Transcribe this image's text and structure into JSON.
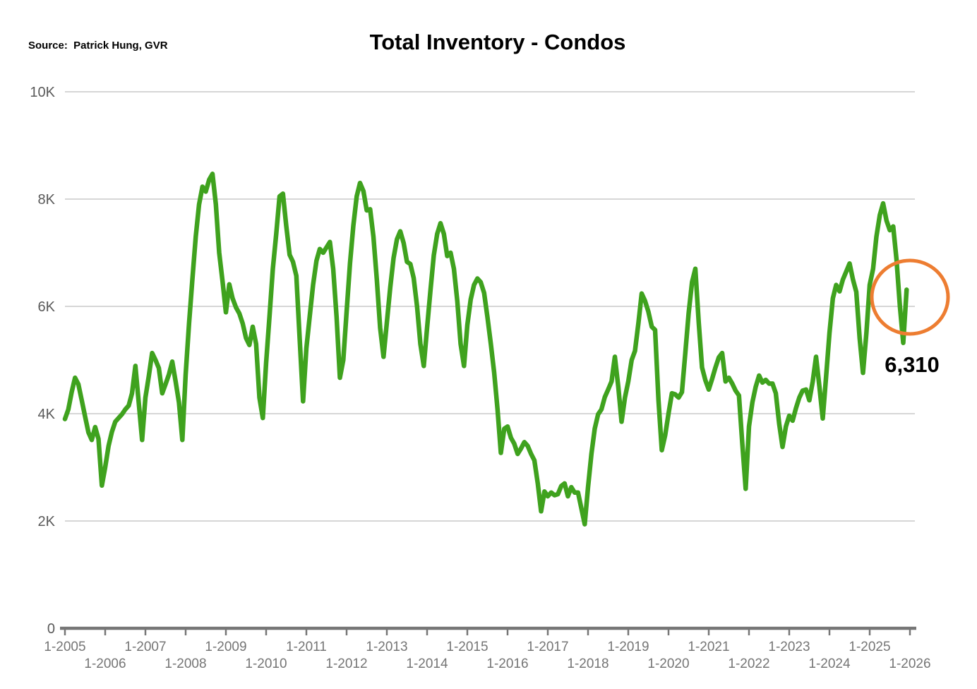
{
  "header": {
    "source": "Source:  Patrick Hung, GVR",
    "title": "Total Inventory - Condos"
  },
  "annotation": {
    "last_value_label": "6,310"
  },
  "colors": {
    "line_green": "#3FA21E",
    "circle_orange": "#ED7D31",
    "gridline_gray": "#C9C9C9",
    "axis_gray": "#767676",
    "x_label_gray": "#757575",
    "y_label_gray": "#595959"
  },
  "chart_data": {
    "type": "line",
    "title": "Total Inventory - Condos",
    "frequency": "monthly",
    "x_start_month": "1-2005",
    "x_end_month": "12-2025",
    "ylim": [
      0,
      10000
    ],
    "grid": true,
    "legend_position": "none",
    "y_tick_values": [
      0,
      2000,
      4000,
      6000,
      8000,
      10000
    ],
    "y_tick_labels": [
      "0",
      "2K",
      "4K",
      "6K",
      "8K",
      "10K"
    ],
    "x_tick_labels": [
      "1-2005",
      "1-2006",
      "1-2007",
      "1-2008",
      "1-2009",
      "1-2010",
      "1-2011",
      "1-2012",
      "1-2013",
      "1-2014",
      "1-2015",
      "1-2016",
      "1-2017",
      "1-2018",
      "1-2019",
      "1-2020",
      "1-2021",
      "1-2022",
      "1-2023",
      "1-2024",
      "1-2025",
      "1-2026"
    ],
    "annotated_last_value": 6310,
    "series": [
      {
        "name": "Total Inventory - Condos",
        "values": [
          3900,
          4080,
          4400,
          4670,
          4550,
          4250,
          3950,
          3650,
          3510,
          3750,
          3530,
          2660,
          3000,
          3400,
          3660,
          3850,
          3920,
          3990,
          4080,
          4150,
          4380,
          4890,
          4210,
          3510,
          4300,
          4700,
          5130,
          5000,
          4850,
          4380,
          4550,
          4730,
          4970,
          4600,
          4210,
          3510,
          4730,
          5680,
          6500,
          7300,
          7900,
          8230,
          8140,
          8360,
          8470,
          7900,
          7000,
          6460,
          5890,
          6410,
          6150,
          5980,
          5870,
          5680,
          5410,
          5280,
          5620,
          5300,
          4300,
          3920,
          4950,
          5820,
          6700,
          7350,
          8050,
          8100,
          7500,
          6960,
          6830,
          6570,
          5400,
          4230,
          5220,
          5820,
          6400,
          6850,
          7070,
          7000,
          7100,
          7200,
          6700,
          5800,
          4670,
          5000,
          5900,
          6800,
          7500,
          8050,
          8300,
          8150,
          7790,
          7810,
          7300,
          6500,
          5600,
          5060,
          5700,
          6350,
          6900,
          7250,
          7400,
          7180,
          6830,
          6790,
          6530,
          6000,
          5300,
          4890,
          5600,
          6300,
          6950,
          7350,
          7550,
          7350,
          6940,
          7000,
          6700,
          6100,
          5300,
          4890,
          5650,
          6130,
          6400,
          6520,
          6450,
          6250,
          5800,
          5300,
          4770,
          4080,
          3270,
          3720,
          3760,
          3550,
          3440,
          3250,
          3350,
          3470,
          3400,
          3250,
          3130,
          2700,
          2180,
          2550,
          2460,
          2530,
          2480,
          2500,
          2650,
          2700,
          2460,
          2630,
          2530,
          2530,
          2240,
          1940,
          2630,
          3250,
          3720,
          3990,
          4080,
          4310,
          4450,
          4600,
          5060,
          4510,
          3850,
          4300,
          4600,
          5000,
          5170,
          5680,
          6240,
          6100,
          5900,
          5620,
          5560,
          4250,
          3320,
          3600,
          4000,
          4380,
          4360,
          4300,
          4400,
          5130,
          5870,
          6450,
          6700,
          5700,
          4860,
          4620,
          4450,
          4650,
          4860,
          5050,
          5130,
          4600,
          4670,
          4560,
          4430,
          4340,
          3450,
          2600,
          3760,
          4210,
          4500,
          4710,
          4580,
          4630,
          4560,
          4560,
          4380,
          3810,
          3380,
          3760,
          3960,
          3870,
          4100,
          4300,
          4430,
          4450,
          4250,
          4600,
          5060,
          4500,
          3910,
          4700,
          5500,
          6150,
          6400,
          6280,
          6500,
          6650,
          6800,
          6500,
          6270,
          5400,
          4760,
          5500,
          6400,
          6700,
          7300,
          7700,
          7920,
          7600,
          7420,
          7490,
          6870,
          6000,
          5320,
          6310
        ]
      }
    ]
  }
}
